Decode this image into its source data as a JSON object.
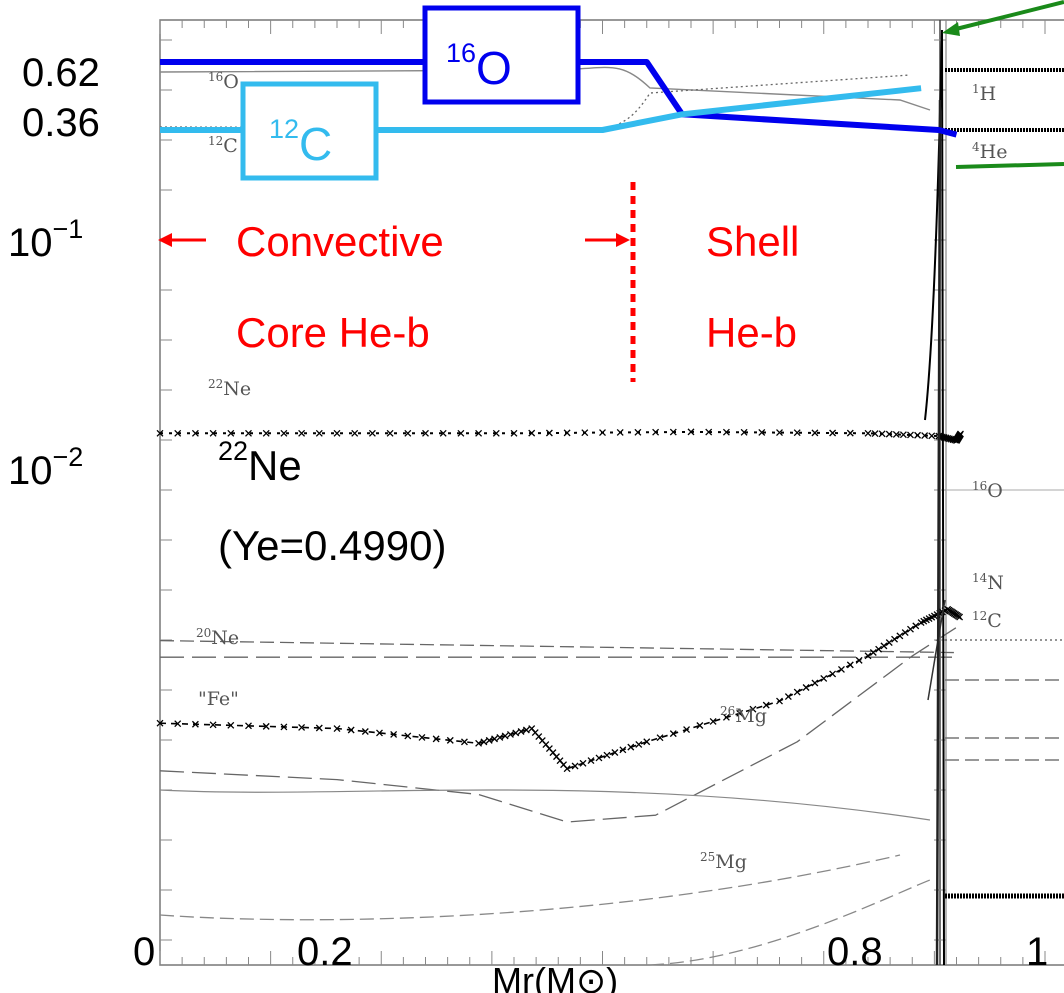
{
  "chart_data": {
    "type": "line",
    "title": "",
    "xlabel": "Mr(M⊙)",
    "ylabel": "",
    "x_tick_labels": [
      "0",
      "0.2",
      "0.8",
      "1"
    ],
    "y_tick_labels": {
      "top1": "0.62",
      "top2": "0.36",
      "dec1_base": "10",
      "dec1_exp": "−1",
      "dec2_base": "10",
      "dec2_exp": "−2"
    },
    "y_scale": "log",
    "xlim": [
      0,
      1.03
    ],
    "grid": false,
    "region_labels": {
      "convective": [
        "Convective",
        "Core He-b"
      ],
      "shell": [
        "Shell",
        "He-b"
      ]
    },
    "boxed_labels": {
      "o16": {
        "sup": "16",
        "base": "O",
        "color": "#0000ee"
      },
      "c12": {
        "sup": "12",
        "base": "C",
        "color": "#33bbee"
      }
    },
    "ne22_annotation": {
      "sup": "22",
      "base": "Ne",
      "note": "(Ye=0.4990)"
    },
    "panel_labels": [
      {
        "sup": "16",
        "base": "O"
      },
      {
        "sup": "12",
        "base": "C"
      },
      {
        "sup": "22",
        "base": "Ne"
      },
      {
        "sup": "20",
        "base": "Ne"
      },
      {
        "sup": "",
        "base": "\"Fe\""
      },
      {
        "sup": "26",
        "base": "Mg"
      },
      {
        "sup": "25",
        "base": "Mg"
      },
      {
        "sup": "1",
        "base": "H"
      },
      {
        "sup": "4",
        "base": "He"
      },
      {
        "sup": "16",
        "base": "O"
      },
      {
        "sup": "14",
        "base": "N"
      },
      {
        "sup": "12",
        "base": "C"
      }
    ],
    "series": [
      {
        "name": "16O",
        "x": [
          0,
          0.55,
          0.59,
          0.88,
          0.9
        ],
        "y": [
          0.62,
          0.62,
          0.42,
          0.36,
          0.29
        ],
        "color": "#0000ee"
      },
      {
        "name": "12C",
        "x": [
          0,
          0.5,
          0.59,
          0.86
        ],
        "y": [
          0.36,
          0.36,
          0.42,
          0.52
        ],
        "color": "#33bbee"
      },
      {
        "name": "22Ne",
        "x": [
          0,
          0.2,
          0.4,
          0.6,
          0.8,
          0.88,
          0.9,
          0.905
        ],
        "y": [
          0.0142,
          0.0142,
          0.0142,
          0.0144,
          0.0142,
          0.0138,
          0.0132,
          0.0142
        ],
        "color": "#000000"
      },
      {
        "name": "20Ne",
        "x": [
          0,
          0.9
        ],
        "y": [
          0.00175,
          0.00155
        ],
        "color": "#666666"
      },
      {
        "name": "Fe",
        "x": [
          0,
          0.9
        ],
        "y": [
          0.00148,
          0.00148
        ],
        "color": "#666666"
      },
      {
        "name": "26Mg",
        "x": [
          0,
          0.2,
          0.36,
          0.42,
          0.46,
          0.55,
          0.7,
          0.8,
          0.86,
          0.89,
          0.905
        ],
        "y": [
          0.00076,
          0.00072,
          0.00062,
          0.00072,
          0.00048,
          0.00063,
          0.00095,
          0.0015,
          0.0021,
          0.0024,
          0.0022
        ],
        "color": "#000000"
      },
      {
        "name": "25Mg",
        "x": [
          0,
          0.2,
          0.36,
          0.46,
          0.56,
          0.72,
          0.85,
          0.9
        ],
        "y": [
          0.00047,
          0.00043,
          0.00037,
          0.00028,
          0.0003,
          0.00063,
          0.0015,
          0.002
        ],
        "color": "#666666"
      }
    ],
    "annotations": [
      "green arrow at top-right edge",
      "red dotted boundary between convective core and shell"
    ]
  }
}
